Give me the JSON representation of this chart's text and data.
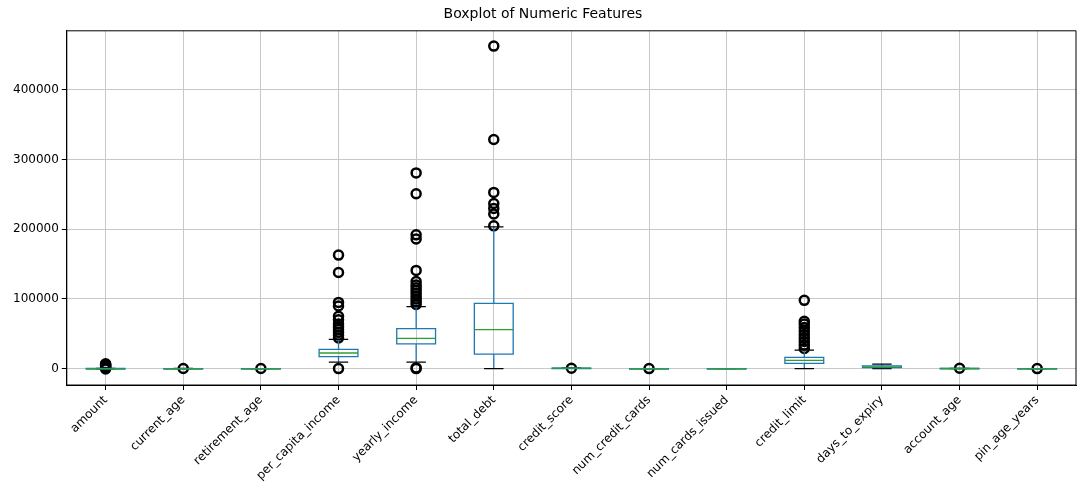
{
  "chart_data": {
    "type": "box",
    "title": "Boxplot of Numeric Features",
    "categories": [
      "amount",
      "current_age",
      "retirement_age",
      "per_capita_income",
      "yearly_income",
      "total_debt",
      "credit_score",
      "num_credit_cards",
      "num_cards_issued",
      "credit_limit",
      "days_to_expiry",
      "account_age",
      "pin_age_years"
    ],
    "color": "#1f77b4",
    "boxes": [
      {
        "low": -300,
        "q1": 10,
        "median": 50,
        "q3": 100,
        "high": 300,
        "outliers": [
          -500,
          1000,
          2000,
          3000,
          4000,
          5000,
          6000,
          7000
        ]
      },
      {
        "low": 20,
        "q1": 40,
        "median": 50,
        "q3": 60,
        "high": 90,
        "outliers": [
          100
        ]
      },
      {
        "low": 55,
        "q1": 65,
        "median": 66,
        "q3": 68,
        "high": 75,
        "outliers": [
          80
        ]
      },
      {
        "low": 9200,
        "q1": 17200,
        "median": 22400,
        "q3": 27700,
        "high": 42000,
        "outliers": [
          0,
          44000,
          48000,
          52000,
          56000,
          60000,
          64000,
          70000,
          75000,
          90000,
          95000,
          138000,
          163000
        ]
      },
      {
        "low": 9200,
        "q1": 35600,
        "median": 43500,
        "q3": 57300,
        "high": 89000,
        "outliers": [
          0,
          1000,
          92000,
          96000,
          100000,
          104000,
          108000,
          112000,
          116000,
          120000,
          125000,
          141000,
          186000,
          192000,
          251000,
          281000
        ]
      },
      {
        "low": 0,
        "q1": 20800,
        "median": 55800,
        "q3": 93700,
        "high": 203500,
        "outliers": [
          205000,
          222000,
          230000,
          237000,
          253000,
          329000,
          463000
        ]
      },
      {
        "low": 550,
        "q1": 680,
        "median": 710,
        "q3": 750,
        "high": 850,
        "outliers": [
          480
        ]
      },
      {
        "low": 1,
        "q1": 2,
        "median": 3,
        "q3": 4,
        "high": 7,
        "outliers": [
          9
        ]
      },
      {
        "low": 1,
        "q1": 1,
        "median": 1,
        "q3": 2,
        "high": 3
      },
      {
        "low": 0,
        "q1": 7400,
        "median": 11700,
        "q3": 16000,
        "high": 26400,
        "outliers": [
          29000,
          34000,
          39000,
          44000,
          49000,
          54000,
          59000,
          64000,
          68000,
          98000
        ]
      },
      {
        "low": 0,
        "q1": 1500,
        "median": 2500,
        "q3": 4000,
        "high": 6500
      },
      {
        "low": 10,
        "q1": 80,
        "median": 120,
        "q3": 180,
        "high": 300,
        "outliers": [
          400
        ]
      },
      {
        "low": 0,
        "q1": 3,
        "median": 5,
        "q3": 8,
        "high": 15,
        "outliers": [
          20
        ]
      }
    ],
    "ylim": [
      -23600,
      485000
    ],
    "yticks": [
      0,
      100000,
      200000,
      300000,
      400000
    ],
    "grid": true,
    "marker": "circle"
  }
}
